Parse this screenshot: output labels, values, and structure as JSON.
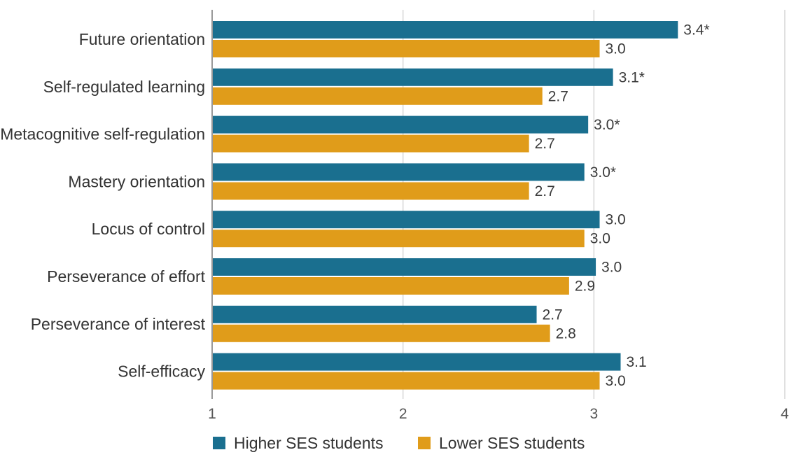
{
  "chart_data": {
    "type": "bar",
    "orientation": "horizontal",
    "categories": [
      "Future orientation",
      "Self-regulated learning",
      "Metacognitive self-regulation",
      "Mastery orientation",
      "Locus of control",
      "Perseverance of effort",
      "Perseverance of interest",
      "Self-efficacy"
    ],
    "series": [
      {
        "name": "Higher SES students",
        "color": "#1a6f8f",
        "values": [
          3.44,
          3.1,
          2.97,
          2.95,
          3.03,
          3.01,
          2.7,
          3.14
        ],
        "labels": [
          "3.4*",
          "3.1*",
          "3.0*",
          "3.0*",
          "3.0",
          "3.0",
          "2.7",
          "3.1"
        ]
      },
      {
        "name": "Lower SES students",
        "color": "#e09c1a",
        "values": [
          3.03,
          2.73,
          2.66,
          2.66,
          2.95,
          2.87,
          2.77,
          3.03
        ],
        "labels": [
          "3.0",
          "2.7",
          "2.7",
          "2.7",
          "3.0",
          "2.9",
          "2.8",
          "3.0"
        ]
      }
    ],
    "xlim": [
      1,
      4
    ],
    "xticks": [
      "1",
      "2",
      "3",
      "4"
    ],
    "title": "",
    "xlabel": "",
    "ylabel": "",
    "grid": "vertical",
    "legend": "bottom-left"
  }
}
